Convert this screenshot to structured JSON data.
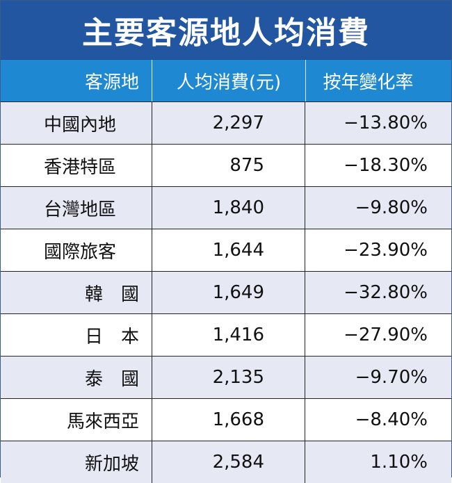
{
  "chart_data": {
    "type": "table",
    "title": "主要客源地人均消費",
    "columns": [
      "客源地",
      "人均消費(元)",
      "按年變化率"
    ],
    "rows": [
      {
        "origin": "中國內地",
        "spend": "2,297",
        "change": "−13.80%"
      },
      {
        "origin": "香港特區",
        "spend": "875",
        "change": "−18.30%"
      },
      {
        "origin": "台灣地區",
        "spend": "1,840",
        "change": "−9.80%"
      },
      {
        "origin": "國際旅客",
        "spend": "1,644",
        "change": "−23.90%"
      },
      {
        "origin": "韓　國",
        "spend": "1,649",
        "change": "−32.80%"
      },
      {
        "origin": "日　本",
        "spend": "1,416",
        "change": "−27.90%"
      },
      {
        "origin": "泰　國",
        "spend": "2,135",
        "change": "−9.70%"
      },
      {
        "origin": "馬來西亞",
        "spend": "1,668",
        "change": "−8.40%"
      },
      {
        "origin": "新加坡",
        "spend": "2,584",
        "change": "1.10%"
      }
    ],
    "values_spend": [
      2297,
      875,
      1840,
      1644,
      1649,
      1416,
      2135,
      1668,
      2584
    ],
    "values_change_pct": [
      -13.8,
      -18.3,
      -9.8,
      -23.9,
      -32.8,
      -27.9,
      -9.7,
      -8.4,
      1.1
    ]
  },
  "colors": {
    "title_bg": "#2356a0",
    "header_bg": "#1e88d2",
    "alt_row_bg": "#e6e8f3"
  }
}
